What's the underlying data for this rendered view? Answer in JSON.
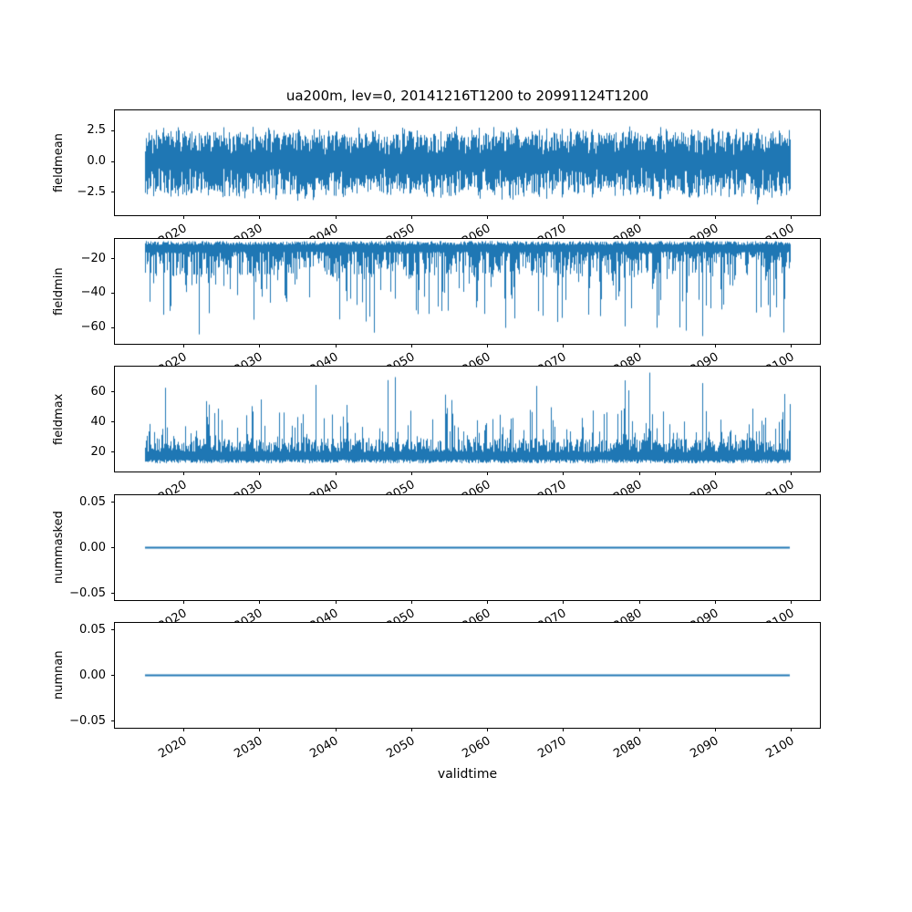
{
  "chart_data": {
    "type": "line",
    "title": "ua200m, lev=0, 20141216T1200 to 20991124T1200",
    "xlabel": "validtime",
    "x_tick_labels": [
      "2020",
      "2030",
      "2040",
      "2050",
      "2060",
      "2070",
      "2080",
      "2090",
      "2100"
    ],
    "x_tick_years": [
      2020,
      2030,
      2040,
      2050,
      2060,
      2070,
      2080,
      2090,
      2100
    ],
    "x_axis_range_years": [
      2010.9,
      2104.0
    ],
    "data_year_range": [
      2014.96,
      2099.9
    ],
    "line_color": "#1f77b4",
    "grid": false,
    "legend": "none",
    "subplots": [
      {
        "name": "fieldmean",
        "ylabel": "fieldmean",
        "ytick_labels": [
          "2.5",
          "0.0",
          "−2.5"
        ],
        "ytick_values": [
          2.5,
          0.0,
          -2.5
        ],
        "ylim": [
          -4.35,
          4.15
        ],
        "summary": {
          "approx_data_min": -4.0,
          "approx_data_max": 3.2,
          "mean_level": 0.0
        },
        "gen": {
          "kind": "band",
          "seed": 7,
          "mod": [
            0.86,
            0.12,
            0.76,
            0.1
          ],
          "hi": [
            0.55,
            2.2,
            0.6
          ],
          "lo": [
            0.6,
            2.4,
            0.6
          ],
          "pLoX": 0.008,
          "addLo": 0.8,
          "pHiX": 0.006,
          "addHi": 0.5
        }
      },
      {
        "name": "fieldmin",
        "ylabel": "fieldmin",
        "ytick_labels": [
          "−20",
          "−40",
          "−60"
        ],
        "ytick_values": [
          -20,
          -40,
          -60
        ],
        "ylim": [
          -69.5,
          -8.5
        ],
        "summary": {
          "approx_data_min": -65,
          "approx_data_max": -9.5,
          "band": [
            -30,
            -10
          ]
        },
        "gen": {
          "kind": "down",
          "seed": 13,
          "top": [
            -9.7,
            -2.3
          ],
          "base": [
            -16,
            -14,
            1.6
          ],
          "spike": [
            0.22,
            -28,
            -28,
            1.7
          ],
          "deep": [
            0.013,
            -52,
            -13
          ],
          "forced": [
            {
              "year": 2022.0,
              "v": -64
            },
            {
              "year": 2045.1,
              "v": -63
            },
            {
              "year": 2088.3,
              "v": -65
            }
          ]
        }
      },
      {
        "name": "fieldmax",
        "ylabel": "fieldmax",
        "ytick_labels": [
          "20",
          "40",
          "60"
        ],
        "ytick_values": [
          20,
          40,
          60
        ],
        "ylim": [
          7,
          77
        ],
        "summary": {
          "approx_data_min": 12.5,
          "approx_data_max": 73,
          "band": [
            13,
            30
          ]
        },
        "gen": {
          "kind": "up",
          "seed": 21,
          "base": [
            12.5,
            2.5
          ],
          "band": [
            20,
            9,
            1.4
          ],
          "spike": [
            0.25,
            28,
            24,
            2.0
          ],
          "deep": [
            0.012,
            52,
            16
          ],
          "forced": [
            {
              "year": 2046.9,
              "v": 68
            },
            {
              "year": 2047.9,
              "v": 70
            },
            {
              "year": 2081.4,
              "v": 73
            },
            {
              "year": 2088.3,
              "v": 66
            },
            {
              "year": 2099.9,
              "v": 52
            }
          ]
        }
      },
      {
        "name": "nummasked",
        "ylabel": "nummasked",
        "ytick_labels": [
          "0.05",
          "0.00",
          "−0.05"
        ],
        "ytick_values": [
          0.05,
          0.0,
          -0.05
        ],
        "ylim": [
          -0.0575,
          0.0575
        ],
        "summary": {
          "constant_value": 0.0
        },
        "gen": {
          "kind": "flat",
          "value": 0.0
        }
      },
      {
        "name": "numnan",
        "ylabel": "numnan",
        "ytick_labels": [
          "0.05",
          "0.00",
          "−0.05"
        ],
        "ytick_values": [
          0.05,
          0.0,
          -0.05
        ],
        "ylim": [
          -0.0575,
          0.0575
        ],
        "summary": {
          "constant_value": 0.0
        },
        "gen": {
          "kind": "flat",
          "value": 0.0
        }
      }
    ]
  }
}
